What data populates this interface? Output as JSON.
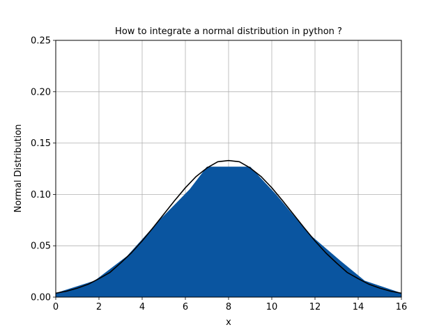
{
  "chart_data": {
    "type": "area",
    "title": "How to integrate a normal distribution in python ?",
    "xlabel": "x",
    "ylabel": "Normal Distribution",
    "xlim": [
      0,
      16
    ],
    "ylim": [
      0,
      0.25
    ],
    "grid": true,
    "x_ticks": [
      0,
      2,
      4,
      6,
      8,
      10,
      12,
      14,
      16
    ],
    "x_tick_labels": [
      "0",
      "2",
      "4",
      "6",
      "8",
      "10",
      "12",
      "14",
      "16"
    ],
    "y_ticks": [
      0,
      0.05,
      0.1,
      0.15,
      0.2,
      0.25
    ],
    "y_tick_labels": [
      "0.00",
      "0.05",
      "0.10",
      "0.15",
      "0.20",
      "0.25"
    ],
    "series": [
      {
        "kind": "curve",
        "color": "#000000",
        "distribution": "normal",
        "mean": 8,
        "std": 3,
        "x": [
          0,
          0.5,
          1,
          1.5,
          2,
          2.5,
          3,
          3.5,
          4,
          4.5,
          5,
          5.5,
          6,
          6.5,
          7,
          7.5,
          8,
          8.5,
          9,
          9.5,
          10,
          10.5,
          11,
          11.5,
          12,
          12.5,
          13,
          13.5,
          14,
          14.5,
          15,
          15.5,
          16
        ],
        "y": [
          0.0038,
          0.0058,
          0.0087,
          0.0125,
          0.018,
          0.0239,
          0.0332,
          0.0431,
          0.0547,
          0.0675,
          0.0807,
          0.0939,
          0.1065,
          0.1175,
          0.1258,
          0.1318,
          0.133,
          0.1318,
          0.1258,
          0.1175,
          0.1065,
          0.0939,
          0.0807,
          0.0675,
          0.0547,
          0.0431,
          0.0332,
          0.0239,
          0.018,
          0.0125,
          0.0087,
          0.0058,
          0.0038
        ]
      },
      {
        "kind": "filled-area",
        "color": "#0a55a0",
        "x": [
          0,
          1.8,
          3.3,
          4.8,
          6.2,
          7.0,
          9.0,
          10.2,
          11.7,
          13.2,
          14.3,
          16
        ],
        "y": [
          0.004,
          0.016,
          0.04,
          0.075,
          0.105,
          0.127,
          0.127,
          0.1,
          0.062,
          0.035,
          0.016,
          0.004
        ]
      }
    ]
  }
}
